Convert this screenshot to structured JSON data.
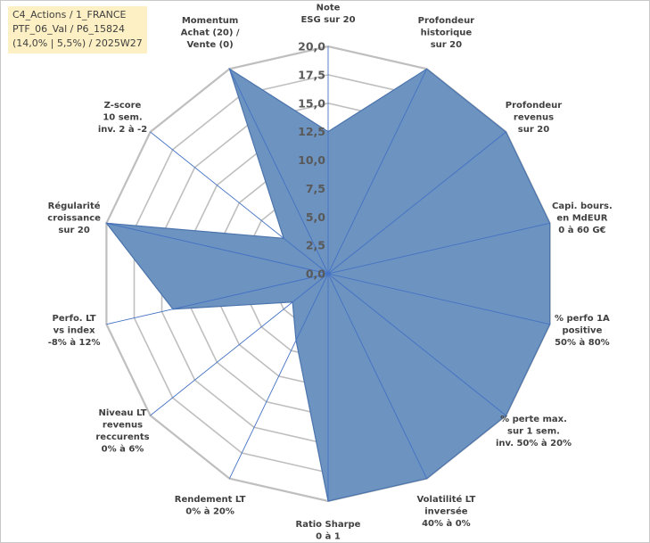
{
  "info": {
    "line1": "C4_Actions / 1_FRANCE",
    "line2": "PTF_06_Val / P6_15824",
    "line3": "(14,0% | 5,5%) / 2025W27"
  },
  "chart_data": {
    "type": "radar",
    "rmin": 0,
    "rmax": 20,
    "ticks": [
      "0,0",
      "2,5",
      "5,0",
      "7,5",
      "10,0",
      "12,5",
      "15,0",
      "17,5",
      "20,0"
    ],
    "tick_values": [
      0,
      2.5,
      5,
      7.5,
      10,
      12.5,
      15,
      17.5,
      20
    ],
    "axes": [
      {
        "label": [
          "Note",
          "ESG sur 20"
        ],
        "value": 12.5
      },
      {
        "label": [
          "Profondeur",
          "historique",
          "sur 20"
        ],
        "value": 20
      },
      {
        "label": [
          "Profondeur",
          "revenus",
          "sur 20"
        ],
        "value": 20
      },
      {
        "label": [
          "Capi. bours.",
          "en MdEUR",
          "0 à 60 G€"
        ],
        "value": 20
      },
      {
        "label": [
          "% perfo 1A",
          "positive",
          "50% à 80%"
        ],
        "value": 20
      },
      {
        "label": [
          "% perte max.",
          "sur 1 sem.",
          "inv. 50% à 20%"
        ],
        "value": 20
      },
      {
        "label": [
          "Volatilité LT",
          "inversée",
          "40% à 0%"
        ],
        "value": 20
      },
      {
        "label": [
          "Ratio Sharpe",
          "0 à 1"
        ],
        "value": 20
      },
      {
        "label": [
          "Rendement LT",
          "0% à 20%"
        ],
        "value": 6.5
      },
      {
        "label": [
          "Niveau LT",
          "revenus",
          "reccurents",
          "0% à 6%"
        ],
        "value": 4
      },
      {
        "label": [
          "Perfo. LT",
          "vs index",
          "-8% à 12%"
        ],
        "value": 14
      },
      {
        "label": [
          "Régularité",
          "croissance",
          "sur 20"
        ],
        "value": 20
      },
      {
        "label": [
          "Z-score",
          "10 sem.",
          "inv. 2 à -2"
        ],
        "value": 5
      },
      {
        "label": [
          "Momentum",
          "Achat (20) /",
          "Vente (0)"
        ],
        "value": 20
      }
    ],
    "colors": {
      "fill": "#6d93c0",
      "line": "#4b74ad",
      "axis": "#4472c4",
      "grid": "#bfbfbf"
    }
  }
}
